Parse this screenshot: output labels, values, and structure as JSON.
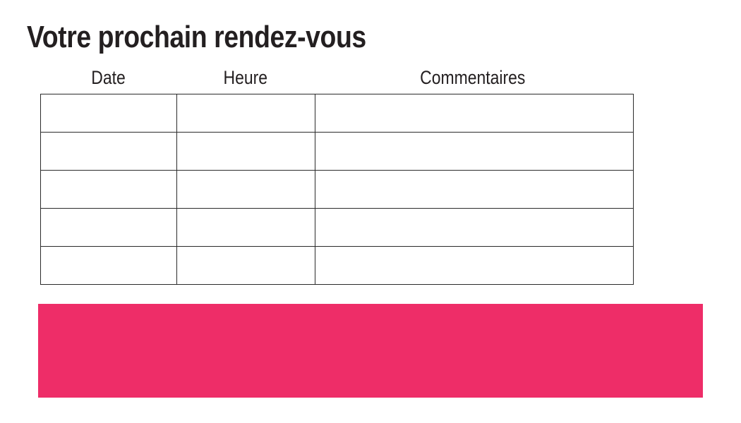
{
  "page": {
    "title": "Votre prochain rendez-vous"
  },
  "table": {
    "columns": [
      {
        "label": "Date"
      },
      {
        "label": "Heure"
      },
      {
        "label": "Commentaires"
      }
    ],
    "rows": [
      [
        "",
        "",
        ""
      ],
      [
        "",
        "",
        ""
      ],
      [
        "",
        "",
        ""
      ],
      [
        "",
        "",
        ""
      ],
      [
        "",
        "",
        ""
      ]
    ]
  },
  "colors": {
    "accent_pink": "#EE2D68",
    "border": "#2B2B2B",
    "text": "#231F20"
  }
}
